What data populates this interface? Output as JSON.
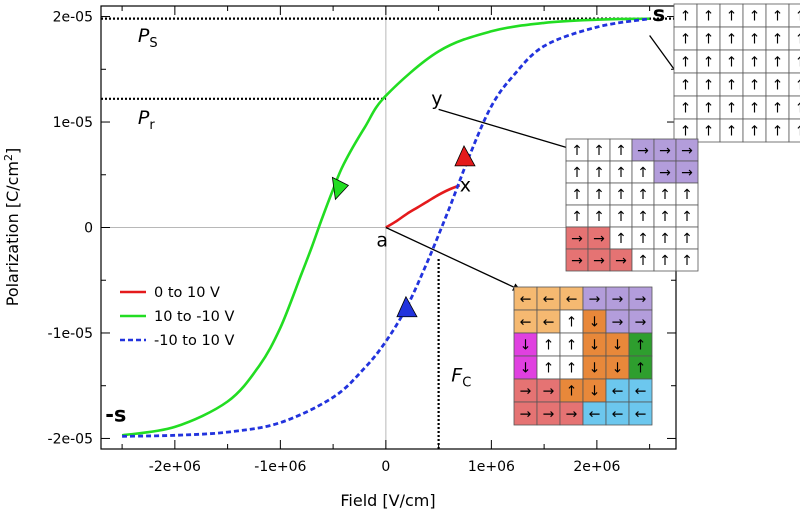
{
  "chart_data": {
    "type": "line",
    "title": "",
    "xlabel": "Field [V/cm]",
    "ylabel": "Polarization [C/cm",
    "ylabel_sup": "2",
    "ylabel_end": "]",
    "xlim": [
      -2700000,
      2750000
    ],
    "ylim": [
      -2.1e-05,
      2.1e-05
    ],
    "grid": false,
    "x_ticks": [
      {
        "value": -2000000,
        "label": "-2e+06"
      },
      {
        "value": -1000000,
        "label": "-1e+06"
      },
      {
        "value": 0,
        "label": "0"
      },
      {
        "value": 1000000,
        "label": "1e+06"
      },
      {
        "value": 2000000,
        "label": "2e+06"
      }
    ],
    "y_ticks": [
      {
        "value": 2e-05,
        "label": "2e-05"
      },
      {
        "value": 1e-05,
        "label": "1e-05"
      },
      {
        "value": 0,
        "label": "0"
      },
      {
        "value": -1e-05,
        "label": "-1e-05"
      },
      {
        "value": -2e-05,
        "label": "-2e-05"
      }
    ],
    "series": [
      {
        "name": "0 to 10 V",
        "color": "#e41a1c",
        "style": "solid",
        "x": [
          0,
          100000,
          200000,
          300000,
          400000,
          500000,
          600000,
          700000
        ],
        "y": [
          0,
          6e-07,
          1.3e-06,
          1.9e-06,
          2.5e-06,
          3.1e-06,
          3.6e-06,
          4e-06
        ]
      },
      {
        "name": "10 to -10 V",
        "color": "#22dd22",
        "style": "solid",
        "x": [
          2500000,
          2000000,
          1500000,
          1000000,
          500000,
          0,
          -200000,
          -400000,
          -500000,
          -600000,
          -700000,
          -800000,
          -1000000,
          -1200000,
          -1500000,
          -2000000,
          -2500000
        ],
        "y": [
          1.98e-05,
          1.97e-05,
          1.94e-05,
          1.86e-05,
          1.67e-05,
          1.25e-05,
          9.5e-06,
          6e-06,
          3.6e-06,
          1e-06,
          -1.8e-06,
          -4.4e-06,
          -9.5e-06,
          -1.31e-05,
          -1.65e-05,
          -1.89e-05,
          -1.97e-05
        ]
      },
      {
        "name": "-10 to 10 V",
        "color": "#2233dd",
        "style": "dashed",
        "x": [
          -2500000,
          -2000000,
          -1500000,
          -1000000,
          -500000,
          -200000,
          0,
          200000,
          400000,
          600000,
          800000,
          1000000,
          1200000,
          1500000,
          2000000,
          2500000
        ],
        "y": [
          -1.98e-05,
          -1.97e-05,
          -1.94e-05,
          -1.85e-05,
          -1.61e-05,
          -1.33e-05,
          -1.08e-05,
          -7.5e-06,
          -3.1e-06,
          1.8e-06,
          7e-06,
          1.15e-05,
          1.43e-05,
          1.72e-05,
          1.9e-05,
          1.98e-05
        ]
      }
    ],
    "direction_markers": [
      {
        "series": "0 to 10 V",
        "x": 750000,
        "y": 6.6e-06,
        "direction": "up"
      },
      {
        "series": "10 to -10 V",
        "x": -450000,
        "y": 3.8e-06,
        "direction": "down"
      },
      {
        "series": "-10 to 10 V",
        "x": 200000,
        "y": -7.7e-06,
        "direction": "up"
      }
    ],
    "reference_lines": [
      {
        "kind": "horizontal",
        "y": 1.98e-05,
        "x_from": -2700000,
        "x_to": 2750000
      },
      {
        "kind": "horizontal",
        "y": 1.22e-05,
        "x_from": -2700000,
        "x_to": 0
      },
      {
        "kind": "vertical",
        "x": 500000,
        "y_from": -2.1e-05,
        "y_to": -2.8e-06
      }
    ],
    "legend": {
      "position": "left-middle",
      "entries": [
        "0 to 10 V",
        "10 to -10 V",
        "-10 to 10 V"
      ]
    },
    "annotations": [
      {
        "text": "P",
        "sub": "S",
        "x": -2350000,
        "y": 1.76e-05
      },
      {
        "text": "P",
        "sub": "r",
        "x": -2350000,
        "y": 9.8e-06
      },
      {
        "text": "F",
        "sub": "C",
        "x": 620000,
        "y": -1.46e-05
      },
      {
        "text": "s",
        "x": 2530000,
        "y": 1.96e-05
      },
      {
        "text": "-s",
        "x": -2660000,
        "y": -1.84e-05
      },
      {
        "text": "y",
        "x": 430000,
        "y": 1.16e-05
      },
      {
        "text": "x",
        "x": 700000,
        "y": 3.4e-06
      },
      {
        "text": "a",
        "x": -90000,
        "y": -1.8e-06
      }
    ],
    "domain_insets": [
      {
        "id": "s",
        "pointer_from": {
          "x": 2500000,
          "y": 1.82e-05
        },
        "rows": [
          [
            "↑",
            "↑",
            "↑",
            "↑",
            "↑",
            "↑"
          ],
          [
            "↑",
            "↑",
            "↑",
            "↑",
            "↑",
            "↑"
          ],
          [
            "↑",
            "↑",
            "↑",
            "↑",
            "↑",
            "↑"
          ],
          [
            "↑",
            "↑",
            "↑",
            "↑",
            "↑",
            "↑"
          ],
          [
            "↑",
            "↑",
            "↑",
            "↑",
            "↑",
            "↑"
          ],
          [
            "↑",
            "↑",
            "↑",
            "↑",
            "↑",
            "↑"
          ]
        ],
        "colors": [
          [
            "w",
            "w",
            "w",
            "w",
            "w",
            "w"
          ],
          [
            "w",
            "w",
            "w",
            "w",
            "w",
            "w"
          ],
          [
            "w",
            "w",
            "w",
            "w",
            "w",
            "w"
          ],
          [
            "w",
            "w",
            "w",
            "w",
            "w",
            "w"
          ],
          [
            "w",
            "w",
            "w",
            "w",
            "w",
            "w"
          ],
          [
            "w",
            "w",
            "w",
            "w",
            "w",
            "w"
          ]
        ]
      },
      {
        "id": "y",
        "pointer_from": {
          "x": 500000,
          "y": 1.12e-05
        },
        "rows": [
          [
            "↑",
            "↑",
            "↑",
            "→",
            "→",
            "→"
          ],
          [
            "↑",
            "↑",
            "↑",
            "↑",
            "→",
            "→"
          ],
          [
            "↑",
            "↑",
            "↑",
            "↑",
            "↑",
            "↑"
          ],
          [
            "↑",
            "↑",
            "↑",
            "↑",
            "↑",
            "↑"
          ],
          [
            "→",
            "→",
            "↑",
            "↑",
            "↑",
            "↑"
          ],
          [
            "→",
            "→",
            "→",
            "↑",
            "↑",
            "↑"
          ]
        ],
        "colors": [
          [
            "w",
            "w",
            "w",
            "v",
            "v",
            "v"
          ],
          [
            "w",
            "w",
            "w",
            "w",
            "v",
            "v"
          ],
          [
            "w",
            "w",
            "w",
            "w",
            "w",
            "w"
          ],
          [
            "w",
            "w",
            "w",
            "w",
            "w",
            "w"
          ],
          [
            "r",
            "r",
            "w",
            "w",
            "w",
            "w"
          ],
          [
            "r",
            "r",
            "r",
            "w",
            "w",
            "w"
          ]
        ]
      },
      {
        "id": "a",
        "pointer_from": {
          "x": 0,
          "y": 0
        },
        "rows": [
          [
            "←",
            "←",
            "←",
            "→",
            "→",
            "→"
          ],
          [
            "←",
            "←",
            "↑",
            "↓",
            "→",
            "→"
          ],
          [
            "↓",
            "↑",
            "↑",
            "↓",
            "↓",
            "↑"
          ],
          [
            "↓",
            "↑",
            "↑",
            "↓",
            "↓",
            "↑"
          ],
          [
            "→",
            "→",
            "↑",
            "↓",
            "←",
            "←"
          ],
          [
            "→",
            "→",
            "→",
            "←",
            "←",
            "←"
          ]
        ],
        "colors": [
          [
            "o",
            "o",
            "o",
            "v",
            "v",
            "v"
          ],
          [
            "o",
            "o",
            "w",
            "d",
            "v",
            "v"
          ],
          [
            "m",
            "w",
            "w",
            "d",
            "d",
            "g"
          ],
          [
            "m",
            "w",
            "w",
            "d",
            "d",
            "g"
          ],
          [
            "r",
            "r",
            "d",
            "d",
            "b",
            "b"
          ],
          [
            "r",
            "r",
            "r",
            "b",
            "b",
            "b"
          ]
        ]
      }
    ],
    "domain_palette": {
      "w": "#ffffff",
      "v": "#b39ddb",
      "r": "#e57373",
      "o": "#f5b971",
      "d": "#e8883a",
      "m": "#e040e0",
      "g": "#2e9e2e",
      "b": "#6cc7ee"
    }
  }
}
